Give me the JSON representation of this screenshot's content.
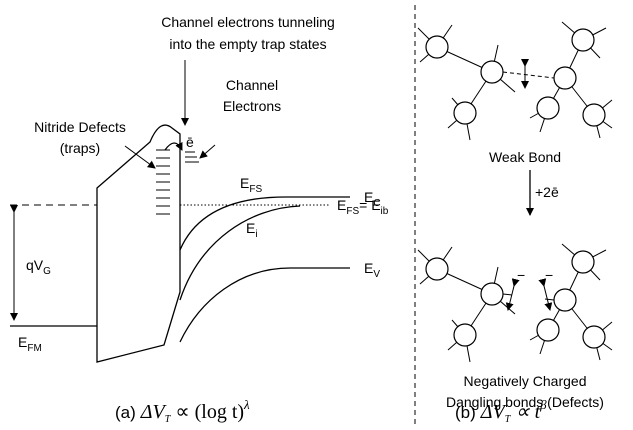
{
  "panel_a": {
    "tunneling_note": [
      "Channel electrons tunneling",
      "into the empty trap states"
    ],
    "channel_electrons": [
      "Channel",
      "Electrons"
    ],
    "nitride_defects": [
      "Nitride Defects",
      "(traps)"
    ],
    "electron": "ē",
    "ec": {
      "symbol": "E",
      "sub": "C"
    },
    "efs": {
      "symbol": "E",
      "sub": "FS"
    },
    "efs_eib": {
      "symbol": "E",
      "sub": "FS",
      "eq": "= E",
      "sub2": "ib"
    },
    "ei": {
      "symbol": "E",
      "sub": "i"
    },
    "ev": {
      "symbol": "E",
      "sub": "V"
    },
    "efm": {
      "symbol": "E",
      "sub": "FM"
    },
    "qvg": {
      "symbol": "qV",
      "sub": "G"
    },
    "caption": {
      "label": "(a)",
      "delta": "ΔV",
      "sub": "T",
      "rest": "∝ (log t)",
      "sup": "λ"
    }
  },
  "panel_b": {
    "weak_bond": "Weak Bond",
    "reaction": "+2ē",
    "charges": [
      "−",
      "−"
    ],
    "defects": [
      "Negatively Charged",
      "Dangling bonds (Defects)"
    ],
    "caption": {
      "label": "(b)",
      "delta": "ΔV",
      "sub": "T",
      "rest": "∝ t",
      "sup": "β"
    }
  }
}
